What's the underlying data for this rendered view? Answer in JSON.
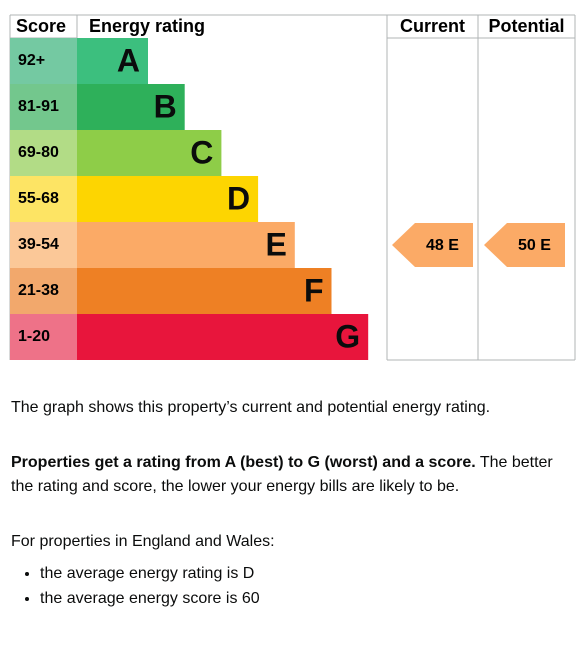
{
  "header": {
    "score": "Score",
    "rating": "Energy rating",
    "current": "Current",
    "potential": "Potential"
  },
  "bands": [
    {
      "score": "92+",
      "letter": "A",
      "color": "#3cbf7e",
      "light": "#74c9a2"
    },
    {
      "score": "81-91",
      "letter": "B",
      "color": "#2eb05a",
      "light": "#73c78d"
    },
    {
      "score": "69-80",
      "letter": "C",
      "color": "#8ecd48",
      "light": "#b2dc86"
    },
    {
      "score": "55-68",
      "letter": "D",
      "color": "#fdd501",
      "light": "#fde464"
    },
    {
      "score": "39-54",
      "letter": "E",
      "color": "#fbaa66",
      "light": "#fbc898"
    },
    {
      "score": "21-38",
      "letter": "F",
      "color": "#ee8024",
      "light": "#f2a86c"
    },
    {
      "score": "1-20",
      "letter": "G",
      "color": "#e8153c",
      "light": "#ee7288"
    }
  ],
  "current": "48 E",
  "potential": "50 E",
  "text": {
    "intro": "The graph shows this property’s current and potential energy rating.",
    "bold": "Properties get a rating from A (best) to G (worst) and a score.",
    "rest": " The better the rating and score, the lower your energy bills are likely to be.",
    "region": "For properties in England and Wales:",
    "bullets": [
      "the average energy rating is D",
      "the average energy score is 60"
    ]
  }
}
